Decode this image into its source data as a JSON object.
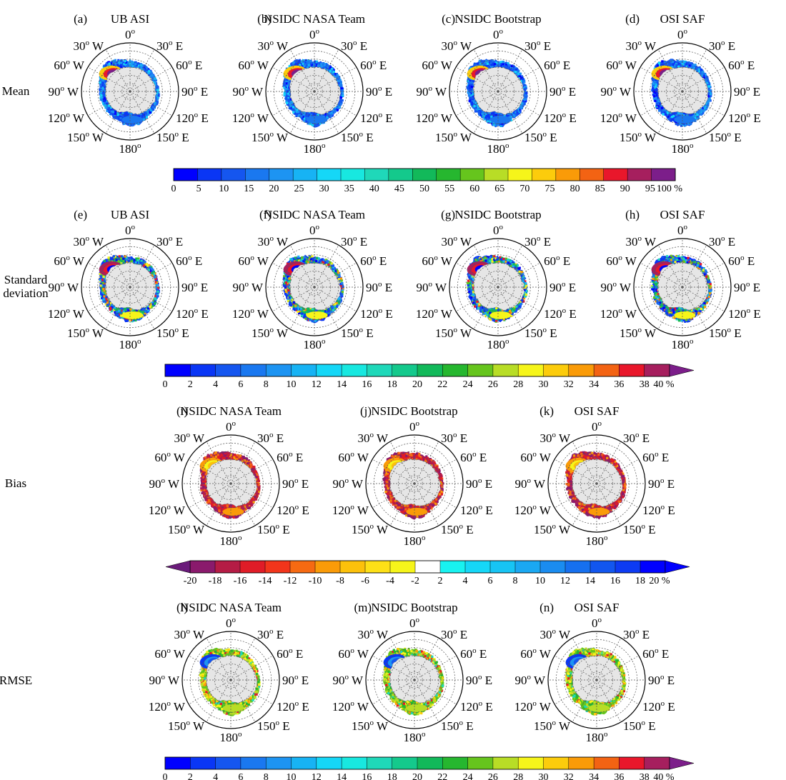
{
  "figure": {
    "row_labels": [
      "Mean",
      "Standard",
      "deviation",
      "Bias",
      "RMSE"
    ],
    "lat_labels": {
      "n": "0",
      "ne": "30",
      "nne": "60",
      "e": "90",
      "se": "120",
      "sse": "150",
      "s": "180"
    },
    "deg_sym": "o",
    "dir_w": "W",
    "dir_e": "E",
    "rows": [
      {
        "panels": [
          {
            "letter": "(a)",
            "title": "UB ASI",
            "style": "mean"
          },
          {
            "letter": "(b)",
            "title": "NSIDC NASA Team",
            "style": "mean"
          },
          {
            "letter": "(c)",
            "title": "NSIDC Bootstrap",
            "style": "mean"
          },
          {
            "letter": "(d)",
            "title": "OSI SAF",
            "style": "mean"
          }
        ]
      },
      {
        "panels": [
          {
            "letter": "(e)",
            "title": "UB ASI",
            "style": "std"
          },
          {
            "letter": "(f)",
            "title": "NSIDC NASA Team",
            "style": "std"
          },
          {
            "letter": "(g)",
            "title": "NSIDC Bootstrap",
            "style": "std"
          },
          {
            "letter": "(h)",
            "title": "OSI SAF",
            "style": "std"
          }
        ]
      },
      {
        "panels": [
          {
            "letter": "(i)",
            "title": "NSIDC NASA Team",
            "style": "bias"
          },
          {
            "letter": "(j)",
            "title": "NSIDC Bootstrap",
            "style": "bias"
          },
          {
            "letter": "(k)",
            "title": "OSI SAF",
            "style": "bias"
          }
        ]
      },
      {
        "panels": [
          {
            "letter": "(l)",
            "title": "NSIDC NASA Team",
            "style": "rmse"
          },
          {
            "letter": "(m)",
            "title": "NSIDC Bootstrap",
            "style": "rmse"
          },
          {
            "letter": "(n)",
            "title": "OSI SAF",
            "style": "rmse"
          }
        ]
      }
    ],
    "colorbars": [
      {
        "name": "mean",
        "ticks": [
          "0",
          "5",
          "10",
          "15",
          "20",
          "25",
          "30",
          "35",
          "40",
          "45",
          "50",
          "55",
          "60",
          "65",
          "70",
          "75",
          "80",
          "85",
          "90",
          "95",
          "100 %"
        ],
        "colors": [
          "#0000ff",
          "#0a36f5",
          "#1556ef",
          "#1a78f0",
          "#1d94f2",
          "#17b3f4",
          "#15d7f7",
          "#18e8e0",
          "#1fd8b9",
          "#14c98c",
          "#12b95a",
          "#26b72f",
          "#66c51d",
          "#b8dd26",
          "#f6f51a",
          "#fccc0c",
          "#fa9b08",
          "#f36313",
          "#e9172b",
          "#a61f5e",
          "#7c1e8a"
        ],
        "arrow_left": false,
        "arrow_right": false
      },
      {
        "name": "std",
        "ticks": [
          "0",
          "2",
          "4",
          "6",
          "8",
          "10",
          "12",
          "14",
          "16",
          "18",
          "20",
          "22",
          "24",
          "26",
          "28",
          "30",
          "32",
          "34",
          "36",
          "38",
          "40 %"
        ],
        "colors": [
          "#0000ff",
          "#0a36f5",
          "#1556ef",
          "#1a78f0",
          "#1d94f2",
          "#17b3f4",
          "#15d7f7",
          "#18e8e0",
          "#1fd8b9",
          "#14c98c",
          "#12b95a",
          "#26b72f",
          "#66c51d",
          "#b8dd26",
          "#f6f51a",
          "#fccc0c",
          "#fa9b08",
          "#f36313",
          "#e9172b",
          "#a61f5e"
        ],
        "arrow_left": false,
        "arrow_right": true,
        "arrow_right_color": "#7c1e8a"
      },
      {
        "name": "bias",
        "ticks": [
          "-20",
          "-18",
          "-16",
          "-14",
          "-12",
          "-10",
          "-8",
          "-6",
          "-4",
          "-2",
          "2",
          "4",
          "6",
          "8",
          "10",
          "12",
          "14",
          "16",
          "18",
          "20 %"
        ],
        "colors": [
          "#8a1a6c",
          "#b51c45",
          "#e01c27",
          "#f2351b",
          "#f66a12",
          "#fa9b08",
          "#fcc10b",
          "#fde017",
          "#f6f51a",
          "#ffffff",
          "#18f2f0",
          "#15d7f7",
          "#17c4f4",
          "#1aa8f2",
          "#1a8cf0",
          "#1670ef",
          "#1256ef",
          "#0d3bf3",
          "#0000ff"
        ],
        "arrow_left": true,
        "arrow_left_color": "#6a1b7a",
        "arrow_right": true,
        "arrow_right_color": "#0000ff"
      },
      {
        "name": "rmse",
        "ticks": [
          "0",
          "2",
          "4",
          "6",
          "8",
          "10",
          "12",
          "14",
          "16",
          "18",
          "20",
          "22",
          "24",
          "26",
          "28",
          "30",
          "32",
          "34",
          "36",
          "38",
          "40 %"
        ],
        "colors": [
          "#0000ff",
          "#0a36f5",
          "#1556ef",
          "#1a78f0",
          "#1d94f2",
          "#17b3f4",
          "#15d7f7",
          "#18e8e0",
          "#1fd8b9",
          "#14c98c",
          "#12b95a",
          "#26b72f",
          "#66c51d",
          "#b8dd26",
          "#f6f51a",
          "#fccc0c",
          "#fa9b08",
          "#f36313",
          "#e9172b",
          "#a61f5e"
        ],
        "arrow_left": false,
        "arrow_right": true,
        "arrow_right_color": "#7c1e8a"
      }
    ],
    "colors": {
      "land": "#e6e6e6",
      "grid": "#555555"
    }
  }
}
